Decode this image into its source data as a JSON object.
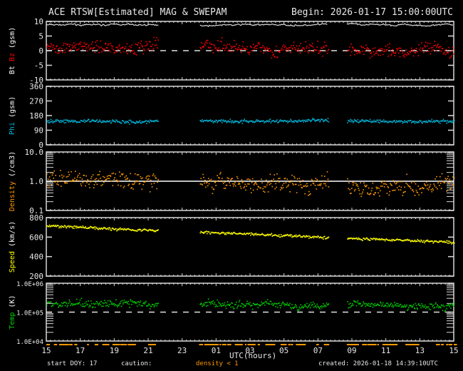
{
  "header": {
    "title": "ACE RTSW[Estimated] MAG & SWEPAM",
    "begin": "Begin: 2026-01-17 15:00:00UTC"
  },
  "footer": {
    "start_doy": "start DOY:  17",
    "caution_label": "caution:",
    "caution_value": "density < 1",
    "xaxis_title": "UTC(hours)",
    "created": "created: 2026-01-18 14:39:10UTC"
  },
  "colors": {
    "bt": "#d8d8d8",
    "bz": "#ff0000",
    "phi": "#00b4d8",
    "density": "#ff9900",
    "speed": "#ffff00",
    "temp": "#00cc00",
    "axis": "#d8d8d8"
  },
  "chart_data": [
    {
      "type": "scatter",
      "title": "Bt / Bz",
      "ylabel": "Bt Bz (gsm)",
      "ylabel_parts": [
        {
          "text": "Bt",
          "color": "#ffffff"
        },
        {
          "text": "Bz",
          "color": "#ff0000"
        },
        {
          "text": "(gsm)",
          "color": "#ffffff"
        }
      ],
      "yscale": "linear",
      "ylim": [
        -10,
        10
      ],
      "yticks": [
        -10,
        -5,
        0,
        5,
        10
      ],
      "ytick_labels": [
        "-10",
        "-5",
        "0",
        "5",
        "10"
      ],
      "reference_line": {
        "y": 0,
        "style": "dashed"
      },
      "series": [
        {
          "name": "Bt",
          "color": "#d8d8d8",
          "style": "line",
          "mean": 8.8,
          "noise": 0.5,
          "drift": 0.0
        },
        {
          "name": "Bz",
          "color": "#ff0000",
          "style": "dots",
          "mean": 2.0,
          "noise": 3.0,
          "drift": -0.1
        }
      ]
    },
    {
      "type": "scatter",
      "title": "Phi",
      "ylabel": "Phi (gsm)",
      "ylabel_parts": [
        {
          "text": "Phi",
          "color": "#00b4d8"
        },
        {
          "text": "(gsm)",
          "color": "#ffffff"
        }
      ],
      "yscale": "linear",
      "ylim": [
        0,
        360
      ],
      "yticks": [
        0,
        90,
        180,
        270,
        360
      ],
      "ytick_labels": [
        "0",
        "90",
        "180",
        "270",
        "360"
      ],
      "series": [
        {
          "name": "Phi",
          "color": "#00b4d8",
          "style": "dots",
          "mean": 150,
          "noise": 15,
          "drift": 0.0
        }
      ]
    },
    {
      "type": "scatter",
      "title": "Density",
      "ylabel": "Density (/cm3)",
      "ylabel_parts": [
        {
          "text": "Density",
          "color": "#ff9900"
        },
        {
          "text": "(/cm3)",
          "color": "#ffffff"
        }
      ],
      "yscale": "log",
      "ylim": [
        0.1,
        10.0
      ],
      "yticks": [
        0.1,
        1.0,
        10.0
      ],
      "ytick_labels": [
        "0.1",
        "1.0",
        "10.0"
      ],
      "reference_line": {
        "y": 1.0,
        "style": "solid"
      },
      "series": [
        {
          "name": "Density",
          "color": "#ff9900",
          "style": "dots",
          "mean_log": 0.05,
          "noise_log": 0.35,
          "drift": -0.2
        }
      ]
    },
    {
      "type": "scatter",
      "title": "Speed",
      "ylabel": "Speed (km/s)",
      "ylabel_parts": [
        {
          "text": "Speed",
          "color": "#ffff00"
        },
        {
          "text": "(km/s)",
          "color": "#ffffff"
        }
      ],
      "yscale": "linear",
      "ylim": [
        200,
        800
      ],
      "yticks": [
        200,
        400,
        600,
        800
      ],
      "ytick_labels": [
        "200",
        "400",
        "600",
        "800"
      ],
      "series": [
        {
          "name": "Speed",
          "color": "#ffff00",
          "style": "dots",
          "start": 720,
          "end": 550,
          "noise": 12
        }
      ]
    },
    {
      "type": "scatter",
      "title": "Temp",
      "ylabel": "Temp (K)",
      "ylabel_parts": [
        {
          "text": "Temp",
          "color": "#00cc00"
        },
        {
          "text": "(K)",
          "color": "#ffffff"
        }
      ],
      "yscale": "log",
      "ylim": [
        10000,
        1000000
      ],
      "yticks": [
        10000,
        100000,
        1000000
      ],
      "ytick_labels": [
        "1.0E+04",
        "1.0E+05",
        "1.0E+06"
      ],
      "reference_line": {
        "y": 100000,
        "style": "dashed"
      },
      "series": [
        {
          "name": "Temp",
          "color": "#00cc00",
          "style": "dots",
          "mean_log": 5.3,
          "noise_log": 0.15,
          "drift": -0.05
        }
      ]
    }
  ],
  "xaxis": {
    "title": "UTC(hours)",
    "tick_labels": [
      "15",
      "17",
      "19",
      "21",
      "23",
      "01",
      "03",
      "05",
      "07",
      "09",
      "11",
      "13",
      "15"
    ],
    "range_hours": 24,
    "data_gaps_hours": [
      [
        6.6,
        9.0
      ],
      [
        16.6,
        17.7
      ]
    ]
  }
}
